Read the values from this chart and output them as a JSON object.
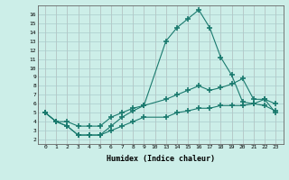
{
  "title": "",
  "xlabel": "Humidex (Indice chaleur)",
  "bg_color": "#cceee8",
  "grid_color": "#aacccc",
  "line_color": "#1a7a6e",
  "x_positions": [
    0,
    1,
    2,
    3,
    4,
    5,
    6,
    7,
    8,
    9,
    10,
    11,
    12,
    13,
    14,
    15,
    16,
    17,
    18,
    19,
    20,
    21
  ],
  "x_labels": [
    "0",
    "1",
    "2",
    "3",
    "4",
    "5",
    "6",
    "7",
    "8",
    "9",
    "10",
    "13",
    "14",
    "15",
    "16",
    "17",
    "18",
    "19",
    "20",
    "21",
    "22",
    "23"
  ],
  "ylim": [
    1.5,
    17.0
  ],
  "yticks": [
    2,
    3,
    4,
    5,
    6,
    7,
    8,
    9,
    10,
    11,
    12,
    13,
    14,
    15,
    16
  ],
  "xlim": [
    -0.7,
    21.7
  ],
  "line1_x": [
    0,
    1,
    2,
    3,
    4,
    5,
    6,
    7,
    8,
    9,
    11,
    12,
    13,
    14,
    15,
    16,
    17,
    18,
    19,
    20,
    21
  ],
  "line1_y": [
    5.0,
    4.0,
    3.5,
    2.5,
    2.5,
    2.5,
    3.5,
    4.5,
    5.2,
    5.8,
    13.0,
    14.5,
    15.5,
    16.5,
    14.5,
    11.2,
    9.2,
    6.2,
    6.0,
    6.5,
    5.0
  ],
  "line2_x": [
    0,
    1,
    2,
    3,
    4,
    5,
    6,
    7,
    8,
    9,
    11,
    12,
    13,
    14,
    15,
    16,
    17,
    18,
    19,
    20,
    21
  ],
  "line2_y": [
    5.0,
    4.0,
    4.0,
    3.5,
    3.5,
    3.5,
    4.5,
    5.0,
    5.5,
    5.8,
    6.5,
    7.0,
    7.5,
    8.0,
    7.5,
    7.8,
    8.2,
    8.8,
    6.5,
    6.5,
    6.0
  ],
  "line3_x": [
    0,
    1,
    2,
    3,
    4,
    5,
    6,
    7,
    8,
    9,
    11,
    12,
    13,
    14,
    15,
    16,
    17,
    18,
    19,
    20,
    21
  ],
  "line3_y": [
    5.0,
    4.0,
    3.5,
    2.5,
    2.5,
    2.5,
    3.0,
    3.5,
    4.0,
    4.5,
    4.5,
    5.0,
    5.2,
    5.5,
    5.5,
    5.8,
    5.8,
    5.8,
    6.0,
    5.8,
    5.2
  ]
}
